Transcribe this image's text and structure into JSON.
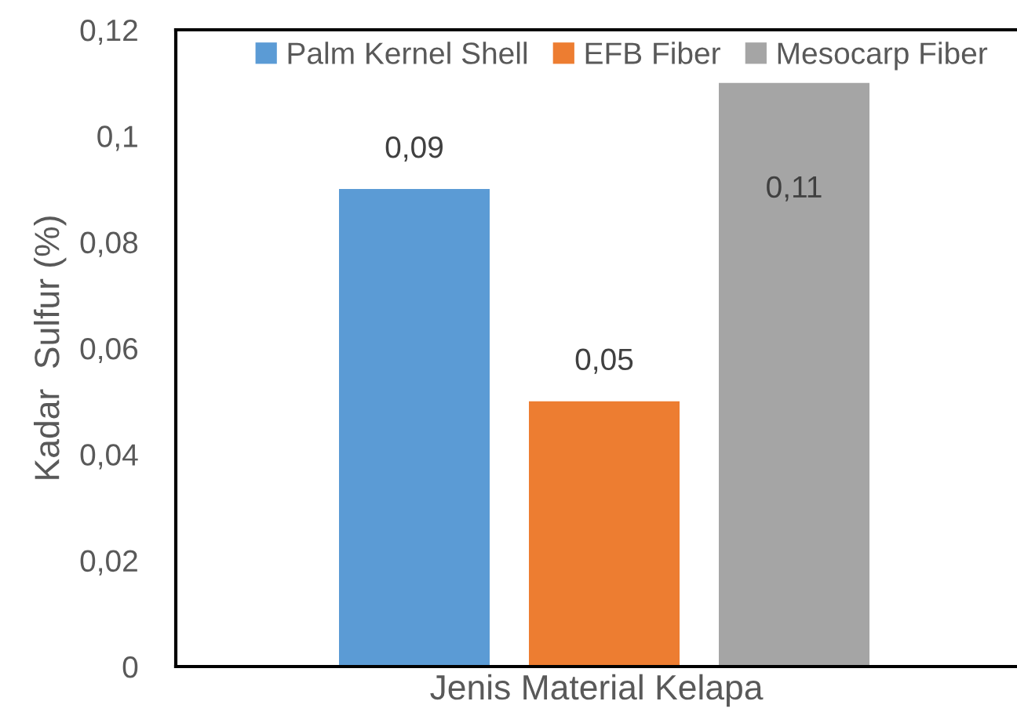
{
  "chart_data": {
    "type": "bar",
    "categories": [
      null
    ],
    "xlabel": "Jenis Material Kelapa",
    "ylabel": "Kadar  Sulfur (%)",
    "ylim": [
      0,
      0.12
    ],
    "yticks": [
      0,
      {
        "value": 0.02,
        "label": "0,02"
      },
      {
        "value": 0.04,
        "label": "0,04"
      },
      {
        "value": 0.06,
        "label": "0,06"
      },
      {
        "value": 0.08,
        "label": "0,08"
      },
      {
        "value": 0.1,
        "label": "0,1"
      },
      {
        "value": 0.12,
        "label": "0,12"
      }
    ],
    "series": [
      {
        "name": "Palm Kernel Shell",
        "color": "#5b9bd5",
        "values": [
          0.09
        ],
        "value_labels": [
          "0,09"
        ]
      },
      {
        "name": "EFB Fiber",
        "color": "#ed7d31",
        "values": [
          0.05
        ],
        "value_labels": [
          "0,05"
        ]
      },
      {
        "name": "Mesocarp Fiber",
        "color": "#a5a5a5",
        "values": [
          0.11
        ],
        "value_labels": [
          "0,11"
        ]
      }
    ],
    "legend": "top"
  }
}
